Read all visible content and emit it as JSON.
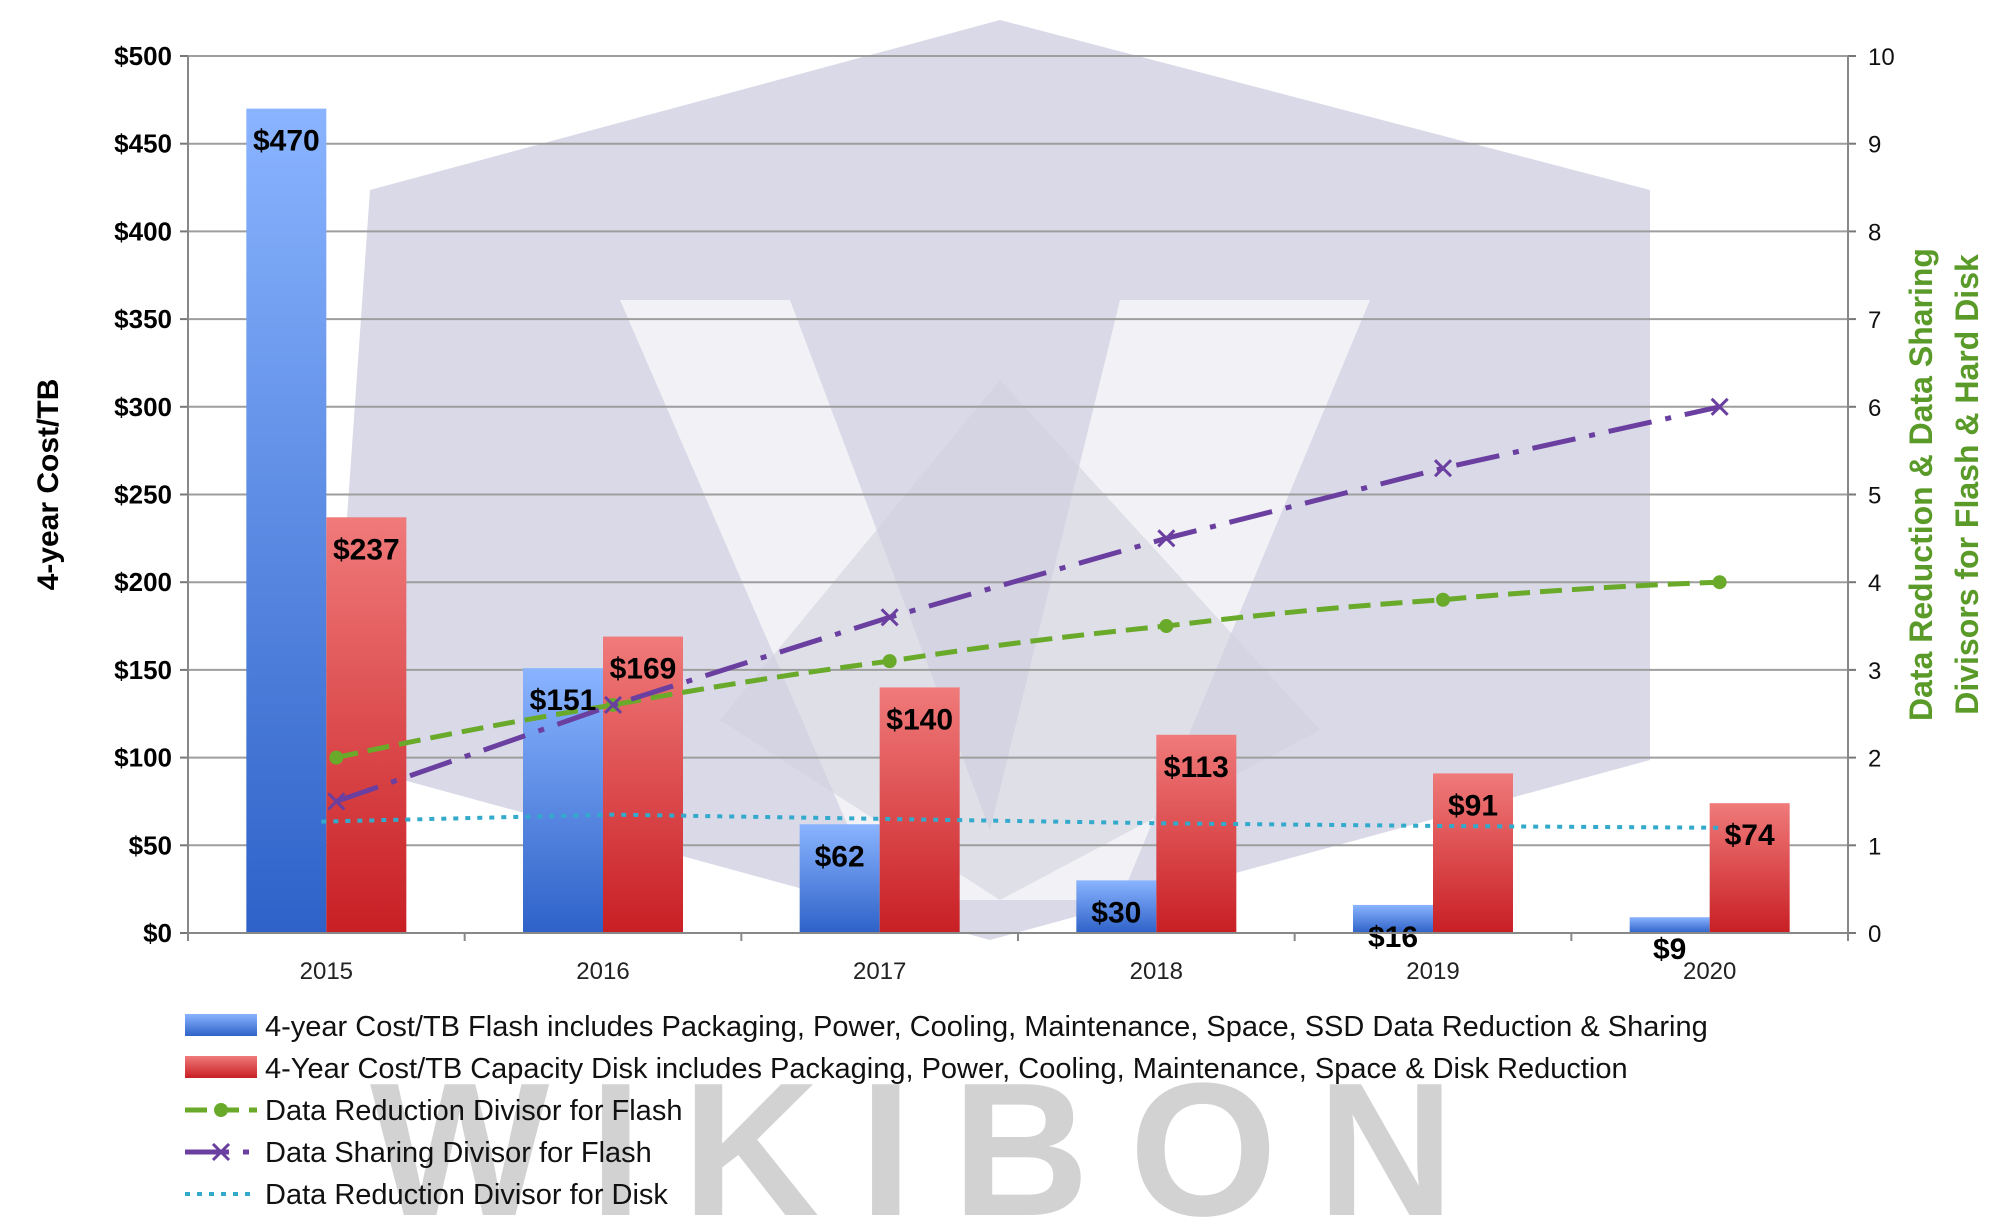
{
  "chart_data": {
    "type": "bar",
    "categories": [
      "2015",
      "2016",
      "2017",
      "2018",
      "2019",
      "2020"
    ],
    "series": [
      {
        "name": "4-year Cost/TB Flash includes Packaging, Power, Cooling, Maintenance, Space, SSD Data Reduction & Sharing",
        "kind": "bar",
        "axis": "left",
        "color": "#4a7fdc",
        "values": [
          470,
          151,
          62,
          30,
          16,
          9
        ],
        "labels": [
          "$470",
          "$151",
          "$62",
          "$30",
          "$16",
          "$9"
        ]
      },
      {
        "name": "4-Year Cost/TB Capacity Disk includes Packaging, Power, Cooling, Maintenance, Space & Disk Reduction",
        "kind": "bar",
        "axis": "left",
        "color": "#d9363a",
        "values": [
          237,
          169,
          140,
          113,
          91,
          74
        ],
        "labels": [
          "$237",
          "$169",
          "$140",
          "$113",
          "$91",
          "$74"
        ]
      },
      {
        "name": "Data Reduction Divisor for Flash",
        "kind": "line",
        "axis": "right",
        "color": "#6aaa2a",
        "style": "dashed",
        "marker": "dot",
        "values": [
          2.0,
          2.6,
          3.1,
          3.5,
          3.8,
          4.0
        ]
      },
      {
        "name": "Data Sharing Divisor for Flash",
        "kind": "line",
        "axis": "right",
        "color": "#6a3fa0",
        "style": "dash-dot",
        "marker": "x",
        "values": [
          1.5,
          2.6,
          3.6,
          4.5,
          5.3,
          6.0
        ]
      },
      {
        "name": "Data Reduction Divisor for Disk",
        "kind": "line",
        "axis": "right",
        "color": "#33aacc",
        "style": "dotted",
        "marker": "none",
        "values": [
          1.27,
          1.35,
          1.3,
          1.25,
          1.22,
          1.2
        ]
      }
    ],
    "ylabel": "4-year Cost/TB",
    "ylim": [
      0,
      500
    ],
    "y_ticks": [
      "$0",
      "$50",
      "$100",
      "$150",
      "$200",
      "$250",
      "$300",
      "$350",
      "$400",
      "$450",
      "$500"
    ],
    "y2label": [
      "Data Reduction & Data Sharing",
      "Divisors  for Flash & Hard Disk"
    ],
    "y2lim": [
      0,
      10
    ],
    "y2_ticks": [
      "0",
      "1",
      "2",
      "3",
      "4",
      "5",
      "6",
      "7",
      "8",
      "9",
      "10"
    ],
    "grid": true,
    "legend_position": "bottom-left"
  },
  "watermark": {
    "text": "WIKIBON"
  }
}
